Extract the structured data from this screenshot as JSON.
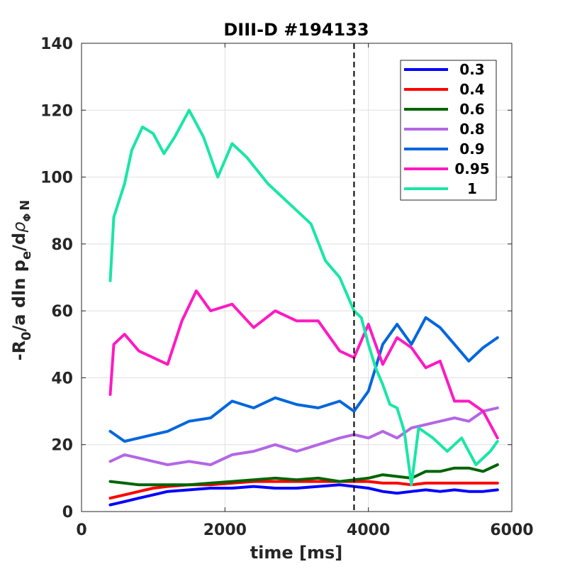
{
  "chart_data": {
    "type": "line",
    "title": "DIII-D #194133",
    "xlabel": "time [ms]",
    "ylabel": {
      "main": "-R",
      "sub0": "0",
      "mid": "/a  dln p",
      "sube": "e",
      "slash": "/d",
      "rho": "ρ",
      "phi": "Φ",
      "n": "N"
    },
    "xlim": [
      0,
      6000
    ],
    "ylim": [
      0,
      140
    ],
    "xticks": [
      "0",
      "2000",
      "4000",
      "6000"
    ],
    "yticks": [
      "0",
      "20",
      "40",
      "60",
      "80",
      "100",
      "120",
      "140"
    ],
    "grid": true,
    "legend_position": "top-right",
    "vline": {
      "x": 3800,
      "style": "dashed",
      "color": "#000000"
    },
    "series": [
      {
        "name": "0.3",
        "color": "#0000ff",
        "x": [
          400,
          600,
          800,
          1000,
          1200,
          1500,
          1800,
          2100,
          2400,
          2700,
          3000,
          3300,
          3600,
          3800,
          4000,
          4200,
          4400,
          4600,
          4800,
          5000,
          5200,
          5400,
          5600,
          5800
        ],
        "y": [
          2,
          3,
          4,
          5,
          6,
          6.5,
          7,
          7,
          7.5,
          7,
          7,
          7.5,
          8,
          7.5,
          7,
          6,
          5.5,
          6,
          6.5,
          6,
          6.5,
          6,
          6,
          6.5
        ]
      },
      {
        "name": "0.4",
        "color": "#ff0000",
        "x": [
          400,
          600,
          800,
          1000,
          1200,
          1500,
          1800,
          2100,
          2400,
          2700,
          3000,
          3300,
          3600,
          3800,
          4000,
          4200,
          4400,
          4600,
          4800,
          5000,
          5200,
          5400,
          5600,
          5800
        ],
        "y": [
          4,
          5,
          6,
          7,
          7.5,
          8,
          8,
          8.5,
          9,
          9,
          9,
          9,
          9,
          9,
          9,
          8.5,
          8.5,
          8,
          8.5,
          8.5,
          8.5,
          8.5,
          8.5,
          8.5
        ]
      },
      {
        "name": "0.6",
        "color": "#006400",
        "x": [
          400,
          600,
          800,
          1000,
          1200,
          1500,
          1800,
          2100,
          2400,
          2700,
          3000,
          3300,
          3600,
          3800,
          4000,
          4200,
          4400,
          4600,
          4800,
          5000,
          5200,
          5400,
          5600,
          5800
        ],
        "y": [
          9,
          8.5,
          8,
          8,
          8,
          8,
          8.5,
          9,
          9.5,
          10,
          9.5,
          10,
          9,
          9.5,
          10,
          11,
          10.5,
          10,
          12,
          12,
          13,
          13,
          12,
          14
        ]
      },
      {
        "name": "0.8",
        "color": "#b366e6",
        "x": [
          400,
          600,
          800,
          1000,
          1200,
          1500,
          1800,
          2100,
          2400,
          2700,
          3000,
          3300,
          3600,
          3800,
          4000,
          4200,
          4400,
          4600,
          4800,
          5000,
          5200,
          5400,
          5600,
          5800
        ],
        "y": [
          15,
          17,
          16,
          15,
          14,
          15,
          14,
          17,
          18,
          20,
          18,
          20,
          22,
          23,
          22,
          24,
          22,
          25,
          26,
          27,
          28,
          27,
          30,
          31
        ]
      },
      {
        "name": "0.9",
        "color": "#0066dd",
        "x": [
          400,
          600,
          800,
          1000,
          1200,
          1500,
          1800,
          2100,
          2400,
          2700,
          3000,
          3300,
          3600,
          3800,
          4000,
          4200,
          4400,
          4600,
          4800,
          5000,
          5200,
          5400,
          5600,
          5800
        ],
        "y": [
          24,
          21,
          22,
          23,
          24,
          27,
          28,
          33,
          31,
          34,
          32,
          31,
          33,
          30,
          36,
          50,
          56,
          50,
          58,
          55,
          50,
          45,
          49,
          52
        ]
      },
      {
        "name": "0.95",
        "color": "#ff19c1",
        "x": [
          400,
          450,
          600,
          800,
          1000,
          1200,
          1400,
          1600,
          1800,
          2100,
          2400,
          2700,
          3000,
          3300,
          3600,
          3800,
          4000,
          4200,
          4400,
          4600,
          4800,
          5000,
          5200,
          5400,
          5600,
          5800
        ],
        "y": [
          35,
          50,
          53,
          48,
          46,
          44,
          57,
          66,
          60,
          62,
          55,
          60,
          57,
          57,
          48,
          46,
          56,
          44,
          52,
          49,
          43,
          45,
          33,
          33,
          30,
          22
        ]
      },
      {
        "name": "1",
        "color": "#19e6a6",
        "x": [
          400,
          450,
          600,
          700,
          850,
          1000,
          1150,
          1300,
          1500,
          1700,
          1900,
          2100,
          2300,
          2600,
          2900,
          3200,
          3400,
          3600,
          3800,
          3900,
          4000,
          4100,
          4200,
          4300,
          4400,
          4500,
          4600,
          4700,
          4900,
          5100,
          5300,
          5500,
          5700,
          5800
        ],
        "y": [
          69,
          88,
          98,
          108,
          115,
          113,
          107,
          112,
          120,
          112,
          100,
          110,
          106,
          98,
          92,
          86,
          75,
          70,
          60,
          58,
          50,
          43,
          38,
          32,
          31,
          24,
          8,
          25,
          22,
          18,
          22,
          14,
          18,
          21
        ]
      }
    ]
  }
}
